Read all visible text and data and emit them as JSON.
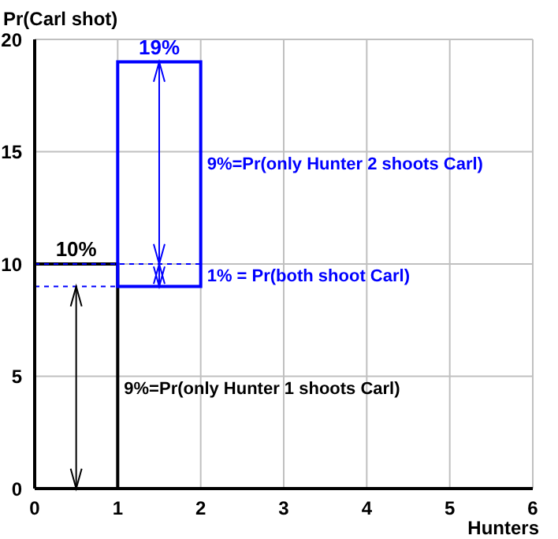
{
  "chart_data": {
    "type": "bar",
    "xlabel": "Hunters",
    "ylabel": "Pr(Carl shot)",
    "x": [
      0.5,
      1.5
    ],
    "base": [
      0,
      9
    ],
    "values": [
      10,
      10
    ],
    "colors": [
      "#000000",
      "#0000ff"
    ],
    "value_labels": [
      "10%",
      "19%"
    ],
    "xlim": [
      0,
      6
    ],
    "xticks": [
      0,
      1,
      2,
      3,
      4,
      5,
      6
    ],
    "ylim": [
      0,
      20
    ],
    "yticks": [
      0,
      5,
      10,
      15,
      20
    ],
    "grid": true,
    "ref_lines": [
      {
        "axis": "y",
        "value": 9,
        "color": "#0000ff",
        "line_style": "dashed"
      },
      {
        "axis": "y",
        "value": 10,
        "color": "#0000ff",
        "line_style": "dashed"
      }
    ],
    "annotations": [
      "9%=Pr(only Hunter 2 shoots Carl)",
      "1% = Pr(both shoot Carl)",
      "9%=Pr(only Hunter 1 shoots Carl)"
    ]
  }
}
